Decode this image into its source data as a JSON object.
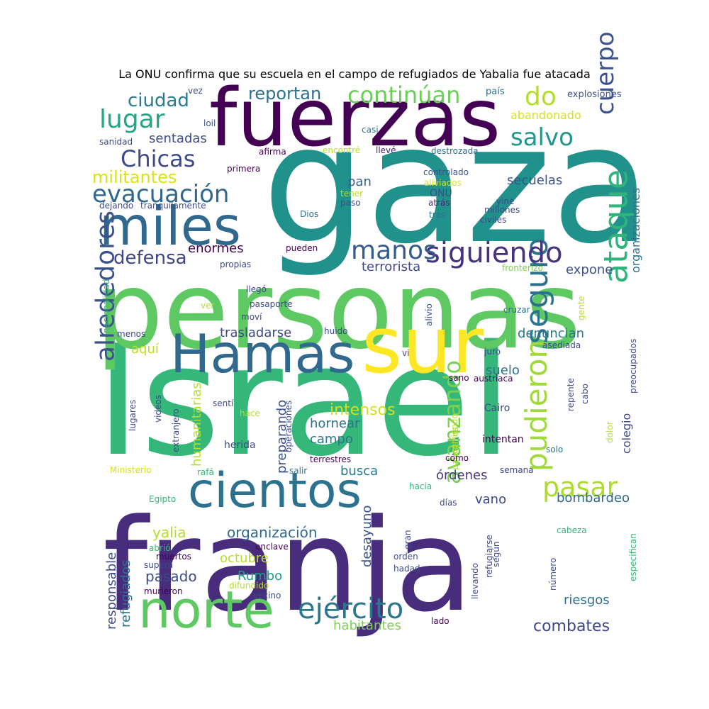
{
  "chart_data": {
    "type": "wordcloud",
    "title": "La ONU confirma que su escuela en el campo de refugiados de Yabalia fue atacada",
    "colormap": "viridis",
    "words": [
      {
        "text": "gaza",
        "size": 230,
        "rot": 0,
        "color": "#21918c"
      },
      {
        "text": "Israel",
        "size": 215,
        "rot": 0,
        "color": "#35b779"
      },
      {
        "text": "personas",
        "size": 150,
        "rot": 0,
        "color": "#5ec962"
      },
      {
        "text": "franja",
        "size": 180,
        "rot": 0,
        "color": "#472d7b"
      },
      {
        "text": "fuerzas",
        "size": 112,
        "rot": 0,
        "color": "#440154"
      },
      {
        "text": "sur",
        "size": 110,
        "rot": 0,
        "color": "#fde725"
      },
      {
        "text": "Hamas",
        "size": 75,
        "rot": 0,
        "color": "#31688e"
      },
      {
        "text": "cientos",
        "size": 68,
        "rot": 0,
        "color": "#2c728e"
      },
      {
        "text": "miles",
        "size": 75,
        "rot": 0,
        "color": "#31688e"
      },
      {
        "text": "norte",
        "size": 72,
        "rot": 0,
        "color": "#5ec962"
      },
      {
        "text": "ataque",
        "size": 46,
        "rot": 270,
        "color": "#2fb47c"
      },
      {
        "text": "seguro",
        "size": 44,
        "rot": 270,
        "color": "#2c728e"
      },
      {
        "text": "alrededores",
        "size": 36,
        "rot": 270,
        "color": "#3b528b"
      },
      {
        "text": "pudieron",
        "size": 42,
        "rot": 270,
        "color": "#a0da39"
      },
      {
        "text": "avanzando",
        "size": 32,
        "rot": 270,
        "color": "#7ad151"
      },
      {
        "text": "cuerpo",
        "size": 34,
        "rot": 270,
        "color": "#3b528b"
      },
      {
        "text": "evacuación",
        "size": 34,
        "rot": 0,
        "color": "#31688e"
      },
      {
        "text": "siguiendo",
        "size": 40,
        "rot": 0,
        "color": "#46327e"
      },
      {
        "text": "ejército",
        "size": 40,
        "rot": 0,
        "color": "#2a788e"
      },
      {
        "text": "pasar",
        "size": 38,
        "rot": 0,
        "color": "#addc30"
      },
      {
        "text": "manos",
        "size": 36,
        "rot": 0,
        "color": "#365c8d"
      },
      {
        "text": "lugar",
        "size": 36,
        "rot": 0,
        "color": "#22a884"
      },
      {
        "text": "salvo",
        "size": 34,
        "rot": 0,
        "color": "#1f988b"
      },
      {
        "text": "do",
        "size": 36,
        "rot": 0,
        "color": "#b5de2b"
      },
      {
        "text": "continúan",
        "size": 32,
        "rot": 0,
        "color": "#6ccd5a"
      },
      {
        "text": "Chicas",
        "size": 32,
        "rot": 0,
        "color": "#3e4989"
      },
      {
        "text": "ciudad",
        "size": 26,
        "rot": 0,
        "color": "#287c8e"
      },
      {
        "text": "reportan",
        "size": 24,
        "rot": 0,
        "color": "#2c728e"
      },
      {
        "text": "defensa",
        "size": 26,
        "rot": 0,
        "color": "#414487"
      },
      {
        "text": "militantes",
        "size": 24,
        "rot": 0,
        "color": "#d8e219"
      },
      {
        "text": "intensos",
        "size": 22,
        "rot": 0,
        "color": "#d0e11c"
      },
      {
        "text": "organización",
        "size": 20,
        "rot": 0,
        "color": "#31688e"
      },
      {
        "text": "combates",
        "size": 22,
        "rot": 0,
        "color": "#404688"
      },
      {
        "text": "habitantes",
        "size": 18,
        "rot": 0,
        "color": "#7ad151"
      },
      {
        "text": "yalia",
        "size": 20,
        "rot": 0,
        "color": "#b5de2b"
      },
      {
        "text": "pasado",
        "size": 20,
        "rot": 0,
        "color": "#3e4a89"
      },
      {
        "text": "octubre",
        "size": 18,
        "rot": 0,
        "color": "#b8de29"
      },
      {
        "text": "Rumbo",
        "size": 18,
        "rot": 0,
        "color": "#1f9e89"
      },
      {
        "text": "bombardeo",
        "size": 18,
        "rot": 0,
        "color": "#31688e"
      },
      {
        "text": "riesgos",
        "size": 18,
        "rot": 0,
        "color": "#2d708e"
      },
      {
        "text": "trasladarse",
        "size": 18,
        "rot": 0,
        "color": "#3f4788"
      },
      {
        "text": "denuncian",
        "size": 18,
        "rot": 0,
        "color": "#2a788e"
      },
      {
        "text": "hornear",
        "size": 18,
        "rot": 0,
        "color": "#2d708e"
      },
      {
        "text": "campo",
        "size": 18,
        "rot": 0,
        "color": "#2a788e"
      },
      {
        "text": "busca",
        "size": 18,
        "rot": 0,
        "color": "#2a788e"
      },
      {
        "text": "órdenes",
        "size": 18,
        "rot": 0,
        "color": "#453882"
      },
      {
        "text": "vano",
        "size": 18,
        "rot": 0,
        "color": "#3e4989"
      },
      {
        "text": "suelo",
        "size": 18,
        "rot": 0,
        "color": "#2c728e"
      },
      {
        "text": "sentadas",
        "size": 18,
        "rot": 0,
        "color": "#3e4989"
      },
      {
        "text": "secuelas",
        "size": 18,
        "rot": 0,
        "color": "#3b528b"
      },
      {
        "text": "pan",
        "size": 18,
        "rot": 0,
        "color": "#33638d"
      },
      {
        "text": "terrorista",
        "size": 18,
        "rot": 0,
        "color": "#3e4989"
      },
      {
        "text": "expone",
        "size": 18,
        "rot": 0,
        "color": "#3b528b"
      },
      {
        "text": "aquí",
        "size": 18,
        "rot": 0,
        "color": "#bddf26"
      },
      {
        "text": "enormes",
        "size": 18,
        "rot": 0,
        "color": "#440154"
      },
      {
        "text": "abandonado",
        "size": 16,
        "rot": 0,
        "color": "#d8e219"
      },
      {
        "text": "explosiones",
        "size": 13,
        "rot": 0,
        "color": "#3b528b"
      },
      {
        "text": "país",
        "size": 13,
        "rot": 0,
        "color": "#2c728e"
      },
      {
        "text": "vez",
        "size": 12,
        "rot": 0,
        "color": "#3e4989"
      },
      {
        "text": "loil",
        "size": 12,
        "rot": 0,
        "color": "#3b528b"
      },
      {
        "text": "casi",
        "size": 12,
        "rot": 0,
        "color": "#2c728e"
      },
      {
        "text": "sanidad",
        "size": 12,
        "rot": 0,
        "color": "#3e4989"
      },
      {
        "text": "afirma",
        "size": 12,
        "rot": 0,
        "color": "#440154"
      },
      {
        "text": "encontré",
        "size": 12,
        "rot": 0,
        "color": "#b5de2b"
      },
      {
        "text": "llevé",
        "size": 12,
        "rot": 0,
        "color": "#482475"
      },
      {
        "text": "destrozada",
        "size": 12,
        "rot": 0,
        "color": "#2d708e"
      },
      {
        "text": "primera",
        "size": 12,
        "rot": 0,
        "color": "#440154"
      },
      {
        "text": "controlado",
        "size": 12,
        "rot": 0,
        "color": "#3b528b"
      },
      {
        "text": "aliviados",
        "size": 12,
        "rot": 0,
        "color": "#d8e219"
      },
      {
        "text": "ONU",
        "size": 14,
        "rot": 0,
        "color": "#3e4989"
      },
      {
        "text": "tener",
        "size": 12,
        "rot": 0,
        "color": "#b5de2b"
      },
      {
        "text": "dejando",
        "size": 12,
        "rot": 0,
        "color": "#3e4989"
      },
      {
        "text": "tranquilamente",
        "size": 12,
        "rot": 0,
        "color": "#3e4989"
      },
      {
        "text": "paso",
        "size": 12,
        "rot": 0,
        "color": "#3e4989"
      },
      {
        "text": "atrás",
        "size": 12,
        "rot": 0,
        "color": "#482475"
      },
      {
        "text": "yine",
        "size": 12,
        "rot": 0,
        "color": "#3e4989"
      },
      {
        "text": "millones",
        "size": 12,
        "rot": 0,
        "color": "#3e4989"
      },
      {
        "text": "Dios",
        "size": 12,
        "rot": 0,
        "color": "#2c728e"
      },
      {
        "text": "tras",
        "size": 12,
        "rot": 0,
        "color": "#2c728e"
      },
      {
        "text": "civiles",
        "size": 12,
        "rot": 0,
        "color": "#3e4989"
      },
      {
        "text": "pueden",
        "size": 12,
        "rot": 0,
        "color": "#440154"
      },
      {
        "text": "propias",
        "size": 12,
        "rot": 0,
        "color": "#3e4989"
      },
      {
        "text": "fronterizo",
        "size": 12,
        "rot": 0,
        "color": "#7ad151"
      },
      {
        "text": "llegó",
        "size": 12,
        "rot": 0,
        "color": "#3e4989"
      },
      {
        "text": "ver",
        "size": 12,
        "rot": 0,
        "color": "#b5de2b"
      },
      {
        "text": "pasaporte",
        "size": 12,
        "rot": 0,
        "color": "#3e4989"
      },
      {
        "text": "moví",
        "size": 12,
        "rot": 0,
        "color": "#3e4989"
      },
      {
        "text": "alivio",
        "size": 12,
        "rot": 270,
        "color": "#3b528b"
      },
      {
        "text": "cruzar",
        "size": 12,
        "rot": 0,
        "color": "#2c728e"
      },
      {
        "text": "gente",
        "size": 12,
        "rot": 270,
        "color": "#b5de2b"
      },
      {
        "text": "nacionalidad",
        "size": 12,
        "rot": 270,
        "color": "#35b779"
      },
      {
        "text": "menos",
        "size": 12,
        "rot": 0,
        "color": "#3e4989"
      },
      {
        "text": "huido",
        "size": 12,
        "rot": 0,
        "color": "#3e4989"
      },
      {
        "text": "vi",
        "size": 12,
        "rot": 0,
        "color": "#3e4989"
      },
      {
        "text": "juro",
        "size": 12,
        "rot": 0,
        "color": "#3e4989"
      },
      {
        "text": "asediada",
        "size": 12,
        "rot": 0,
        "color": "#3e4989"
      },
      {
        "text": "preocupados",
        "size": 12,
        "rot": 270,
        "color": "#3e4989"
      },
      {
        "text": "humanitarias",
        "size": 18,
        "rot": 270,
        "color": "#b5de2b"
      },
      {
        "text": "organizaciones",
        "size": 16,
        "rot": 270,
        "color": "#2c728e"
      },
      {
        "text": "sano",
        "size": 12,
        "rot": 0,
        "color": "#440154"
      },
      {
        "text": "austriaca",
        "size": 12,
        "rot": 0,
        "color": "#440154"
      },
      {
        "text": "colegio",
        "size": 16,
        "rot": 270,
        "color": "#3e4989"
      },
      {
        "text": "lugares",
        "size": 12,
        "rot": 270,
        "color": "#3e4989"
      },
      {
        "text": "videos",
        "size": 12,
        "rot": 270,
        "color": "#3e4989"
      },
      {
        "text": "sentí",
        "size": 12,
        "rot": 0,
        "color": "#3e4989"
      },
      {
        "text": "preparando",
        "size": 18,
        "rot": 270,
        "color": "#3b528b"
      },
      {
        "text": "repente",
        "size": 12,
        "rot": 270,
        "color": "#3e4989"
      },
      {
        "text": "cabo",
        "size": 12,
        "rot": 270,
        "color": "#3e4989"
      },
      {
        "text": "hace",
        "size": 12,
        "rot": 0,
        "color": "#b5de2b"
      },
      {
        "text": "operaciones",
        "size": 12,
        "rot": 270,
        "color": "#3e4989"
      },
      {
        "text": "corriendo",
        "size": 12,
        "rot": 270,
        "color": "#b5de2b"
      },
      {
        "text": "Cairo",
        "size": 14,
        "rot": 0,
        "color": "#3e4989"
      },
      {
        "text": "extranjero",
        "size": 12,
        "rot": 270,
        "color": "#3e4989"
      },
      {
        "text": "palestinos",
        "size": 12,
        "rot": 270,
        "color": "#b5de2b"
      },
      {
        "text": "dolor",
        "size": 12,
        "rot": 270,
        "color": "#b5de2b"
      },
      {
        "text": "intentan",
        "size": 14,
        "rot": 0,
        "color": "#440154"
      },
      {
        "text": "herida",
        "size": 14,
        "rot": 0,
        "color": "#3e4989"
      },
      {
        "text": "terrestres",
        "size": 12,
        "rot": 0,
        "color": "#440154"
      },
      {
        "text": "solo",
        "size": 12,
        "rot": 0,
        "color": "#2c728e"
      },
      {
        "text": "cómo",
        "size": 12,
        "rot": 0,
        "color": "#440154"
      },
      {
        "text": "Ministerio",
        "size": 12,
        "rot": 0,
        "color": "#d8e219"
      },
      {
        "text": "rafá",
        "size": 12,
        "rot": 0,
        "color": "#35b779"
      },
      {
        "text": "salir",
        "size": 12,
        "rot": 0,
        "color": "#2c728e"
      },
      {
        "text": "semana",
        "size": 12,
        "rot": 0,
        "color": "#3e4989"
      },
      {
        "text": "hacia",
        "size": 12,
        "rot": 0,
        "color": "#35b779"
      },
      {
        "text": "Egipto",
        "size": 12,
        "rot": 0,
        "color": "#35b779"
      },
      {
        "text": "días",
        "size": 12,
        "rot": 0,
        "color": "#3e4989"
      },
      {
        "text": "desayuno",
        "size": 18,
        "rot": 270,
        "color": "#3b528b"
      },
      {
        "text": "cabeza",
        "size": 12,
        "rot": 0,
        "color": "#35b779"
      },
      {
        "text": "especifican",
        "size": 12,
        "rot": 270,
        "color": "#35b779"
      },
      {
        "text": "responsable",
        "size": 18,
        "rot": 270,
        "color": "#3e4989"
      },
      {
        "text": "refugiados",
        "size": 18,
        "rot": 270,
        "color": "#2c728e"
      },
      {
        "text": "abrió",
        "size": 12,
        "rot": 0,
        "color": "#35b779"
      },
      {
        "text": "enclave",
        "size": 12,
        "rot": 0,
        "color": "#440154"
      },
      {
        "text": "gran",
        "size": 12,
        "rot": 270,
        "color": "#3e4989"
      },
      {
        "text": "refugiarse",
        "size": 12,
        "rot": 270,
        "color": "#3e4989"
      },
      {
        "text": "número",
        "size": 12,
        "rot": 270,
        "color": "#3e4989"
      },
      {
        "text": "muertos",
        "size": 12,
        "rot": 0,
        "color": "#440154"
      },
      {
        "text": "orden",
        "size": 12,
        "rot": 0,
        "color": "#3e4989"
      },
      {
        "text": "llevando",
        "size": 12,
        "rot": 270,
        "color": "#3e4989"
      },
      {
        "text": "supera",
        "size": 12,
        "rot": 0,
        "color": "#3e4989"
      },
      {
        "text": "hadad",
        "size": 12,
        "rot": 0,
        "color": "#3e4989"
      },
      {
        "text": "según",
        "size": 12,
        "rot": 270,
        "color": "#3e4989"
      },
      {
        "text": "difundido",
        "size": 12,
        "rot": 0,
        "color": "#b5de2b"
      },
      {
        "text": "murieron",
        "size": 12,
        "rot": 0,
        "color": "#440154"
      },
      {
        "text": "vecino",
        "size": 12,
        "rot": 0,
        "color": "#3e4989"
      },
      {
        "text": "lado",
        "size": 12,
        "rot": 0,
        "color": "#440154"
      }
    ]
  }
}
